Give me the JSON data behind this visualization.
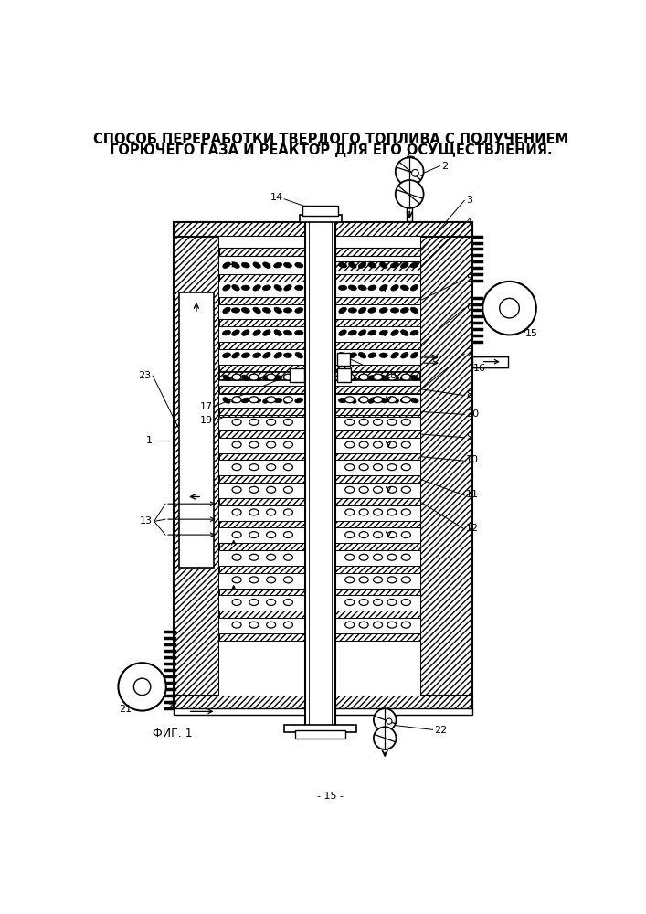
{
  "title_line1": "СПОСОБ ПЕРЕРАБОТКИ ТВЕРДОГО ТОПЛИВА С ПОЛУЧЕНИЕМ",
  "title_line2": "ГОРЮЧЕГО ГАЗА И РЕАКТОР ДЛЯ ЕГО ОСУЩЕСТВЛЕНИЯ.",
  "fig_label": "ФИГ. 1",
  "page_number": "- 15 -",
  "bg_color": "#ffffff"
}
